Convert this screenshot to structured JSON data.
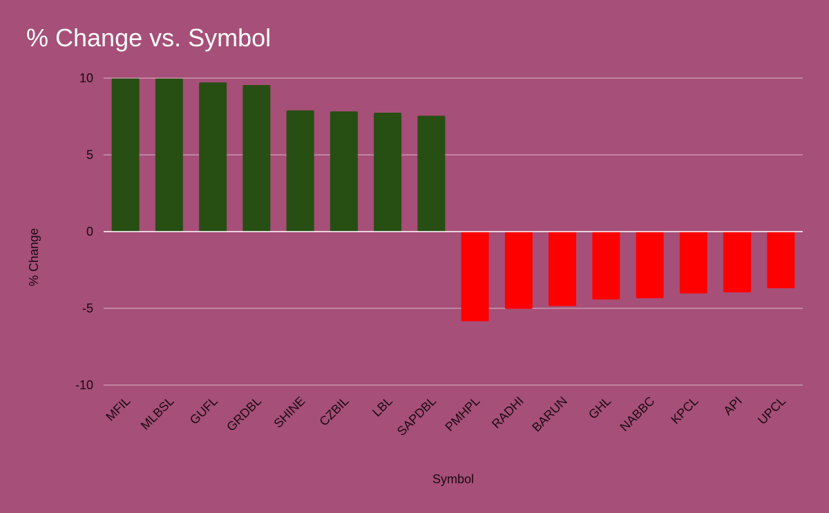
{
  "chart_data": {
    "type": "bar",
    "title": "% Change vs. Symbol",
    "xlabel": "Symbol",
    "ylabel": "% Change",
    "ylim": [
      -10,
      10
    ],
    "yticks": [
      10,
      5,
      0,
      -5,
      -10
    ],
    "categories": [
      "MFIL",
      "MLBSL",
      "GUFL",
      "GRDBL",
      "SHINE",
      "CZBIL",
      "LBL",
      "SAPDBL",
      "PMHPL",
      "RADHI",
      "BARUN",
      "GHL",
      "NABBC",
      "KPCL",
      "API",
      "UPCL"
    ],
    "values": [
      9.98,
      9.97,
      9.72,
      9.55,
      7.9,
      7.83,
      7.75,
      7.55,
      -5.84,
      -5.03,
      -4.85,
      -4.42,
      -4.34,
      -4.03,
      -3.96,
      -3.69
    ],
    "grid": true,
    "legend": "none",
    "colors": {
      "positive": "#274e13",
      "negative": "#ff0000",
      "gridline": "#d9b8c8",
      "zero_line": "#ffffff",
      "background": "#a64f78"
    }
  }
}
